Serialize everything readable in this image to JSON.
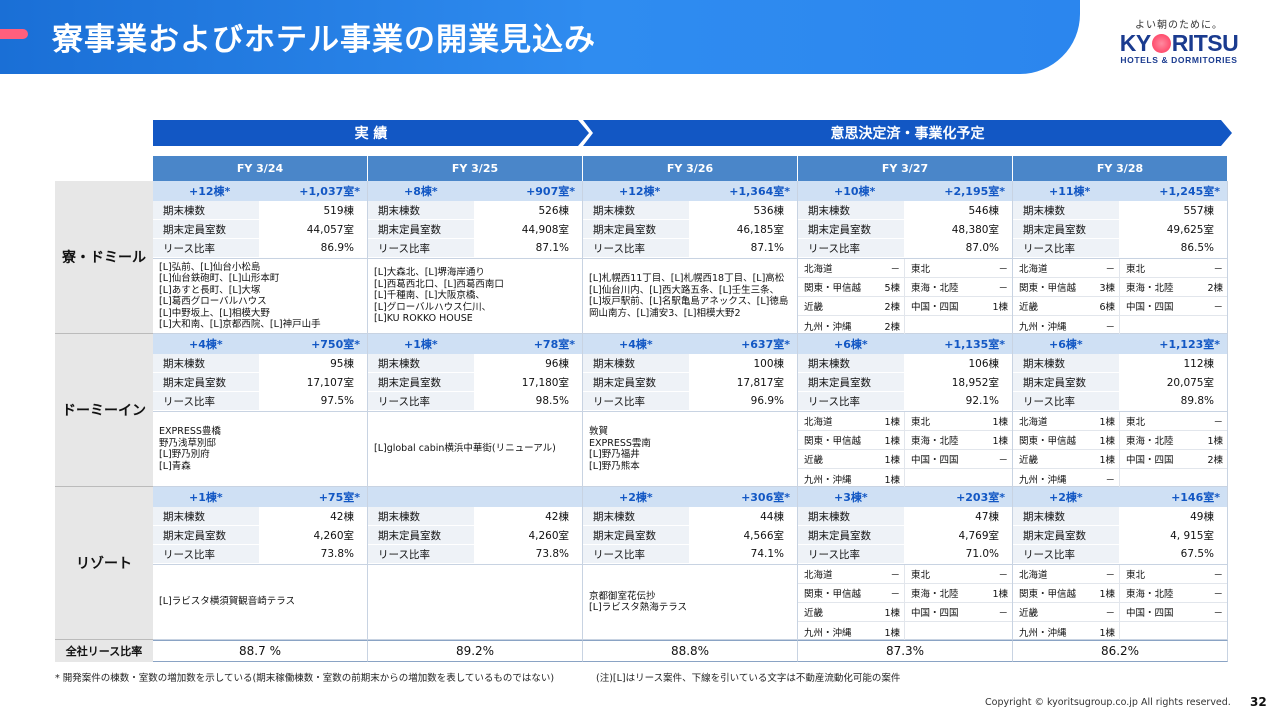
{
  "header": {
    "title": "寮事業およびホテル事業の開業見込み"
  },
  "logo": {
    "tagline": "よい朝のために。",
    "word_left": "KY",
    "word_right": "RITSU",
    "sub": "HOTELS & DORMITORIES"
  },
  "bands": {
    "actual": "実 績",
    "planned": "意思決定済・事業化予定"
  },
  "years": [
    "FY 3/24",
    "FY 3/25",
    "FY 3/26",
    "FY 3/27",
    "FY 3/28"
  ],
  "labels": {
    "buildings": "期末棟数",
    "rooms": "期末定員室数",
    "lease": "リース比率",
    "total": "全社リース比率"
  },
  "sections": {
    "dorm": {
      "name": "寮・ドミール",
      "cols": [
        {
          "inc_b": "+12棟*",
          "inc_r": "+1,037室*",
          "b": "519棟",
          "r": "44,057室",
          "l": "86.9%",
          "props": [
            "[L]弘前、[L]仙台小松島",
            "[L]仙台鉄砲町、[L]山形本町",
            "[L]あすと長町、[L]大塚",
            "[L]葛西グローバルハウス",
            "[L]中野坂上、[L]相模大野",
            "[L]大和南、[L]京都西院、[L]神戸山手"
          ]
        },
        {
          "inc_b": "+8棟*",
          "inc_r": "+907室*",
          "b": "526棟",
          "r": "44,908室",
          "l": "87.1%",
          "props": [
            "[L]大森北、[L]堺海岸通り",
            "[L]西葛西北口、[L]西葛西南口",
            "[L]千種南、[L]大阪京橋、",
            "[L]グローバルハウス仁川、",
            "[L]KU ROKKO HOUSE"
          ]
        },
        {
          "inc_b": "+12棟*",
          "inc_r": "+1,364室*",
          "b": "536棟",
          "r": "46,185室",
          "l": "87.1%",
          "props": [
            "[L]札幌西11丁目、[L]札幌西18丁目、[L]高松",
            "[L]仙台川内、[L]西大路五条、[L]壬生三条、",
            "[L]坂戸駅前、[L]名駅亀島アネックス、[L]徳島",
            "岡山南方、[L]浦安3、[L]相模大野2"
          ]
        },
        {
          "inc_b": "+10棟*",
          "inc_r": "+2,195室*",
          "b": "546棟",
          "r": "48,380室",
          "l": "87.0%",
          "regions": [
            [
              "北海道",
              "－",
              "東北",
              "－"
            ],
            [
              "関東・甲信越",
              "5棟",
              "東海・北陸",
              "－"
            ],
            [
              "近畿",
              "2棟",
              "中国・四国",
              "1棟"
            ],
            [
              "九州・沖縄",
              "2棟",
              "",
              ""
            ]
          ]
        },
        {
          "inc_b": "+11棟*",
          "inc_r": "+1,245室*",
          "b": "557棟",
          "r": "49,625室",
          "l": "86.5%",
          "regions": [
            [
              "北海道",
              "－",
              "東北",
              "－"
            ],
            [
              "関東・甲信越",
              "3棟",
              "東海・北陸",
              "2棟"
            ],
            [
              "近畿",
              "6棟",
              "中国・四国",
              "－"
            ],
            [
              "九州・沖縄",
              "－",
              "",
              ""
            ]
          ]
        }
      ]
    },
    "dormy": {
      "name": "ドーミーイン",
      "cols": [
        {
          "inc_b": "+4棟*",
          "inc_r": "+750室*",
          "b": "95棟",
          "r": "17,107室",
          "l": "97.5%",
          "props": [
            "EXPRESS豊橋",
            "野乃浅草別邸",
            "[L]野乃別府",
            "[L]青森"
          ]
        },
        {
          "inc_b": "+1棟*",
          "inc_r": "+78室*",
          "b": "96棟",
          "r": "17,180室",
          "l": "98.5%",
          "props": [
            "[L]global cabin横浜中華街(リニューアル)"
          ]
        },
        {
          "inc_b": "+4棟*",
          "inc_r": "+637室*",
          "b": "100棟",
          "r": "17,817室",
          "l": "96.9%",
          "props": [
            "敦賀",
            "EXPRESS雲南",
            "[L]野乃福井",
            "[L]野乃熊本"
          ]
        },
        {
          "inc_b": "+6棟*",
          "inc_r": "+1,135室*",
          "b": "106棟",
          "r": "18,952室",
          "l": "92.1%",
          "regions": [
            [
              "北海道",
              "1棟",
              "東北",
              "1棟"
            ],
            [
              "関東・甲信越",
              "1棟",
              "東海・北陸",
              "1棟"
            ],
            [
              "近畿",
              "1棟",
              "中国・四国",
              "－"
            ],
            [
              "九州・沖縄",
              "1棟",
              "",
              ""
            ]
          ]
        },
        {
          "inc_b": "+6棟*",
          "inc_r": "+1,123室*",
          "b": "112棟",
          "r": "20,075室",
          "l": "89.8%",
          "regions": [
            [
              "北海道",
              "1棟",
              "東北",
              "－"
            ],
            [
              "関東・甲信越",
              "1棟",
              "東海・北陸",
              "1棟"
            ],
            [
              "近畿",
              "1棟",
              "中国・四国",
              "2棟"
            ],
            [
              "九州・沖縄",
              "－",
              "",
              ""
            ]
          ]
        }
      ]
    },
    "resort": {
      "name": "リゾート",
      "cols": [
        {
          "inc_b": "+1棟*",
          "inc_r": "+75室*",
          "b": "42棟",
          "r": "4,260室",
          "l": "73.8%",
          "props": [
            "[L]ラビスタ横須賀観音崎テラス"
          ]
        },
        {
          "inc_b": "",
          "inc_r": "",
          "b": "42棟",
          "r": "4,260室",
          "l": "73.8%",
          "props": []
        },
        {
          "inc_b": "+2棟*",
          "inc_r": "+306室*",
          "b": "44棟",
          "r": "4,566室",
          "l": "74.1%",
          "props": [
            "京都御室花伝抄",
            "[L]ラビスタ熱海テラス"
          ]
        },
        {
          "inc_b": "+3棟*",
          "inc_r": "+203室*",
          "b": "47棟",
          "r": "4,769室",
          "l": "71.0%",
          "regions": [
            [
              "北海道",
              "－",
              "東北",
              "－"
            ],
            [
              "関東・甲信越",
              "－",
              "東海・北陸",
              "1棟"
            ],
            [
              "近畿",
              "1棟",
              "中国・四国",
              "－"
            ],
            [
              "九州・沖縄",
              "1棟",
              "",
              ""
            ]
          ]
        },
        {
          "inc_b": "+2棟*",
          "inc_r": "+146室*",
          "b": "49棟",
          "r": "4, 915室",
          "l": "67.5%",
          "regions": [
            [
              "北海道",
              "－",
              "東北",
              "－"
            ],
            [
              "関東・甲信越",
              "1棟",
              "東海・北陸",
              "－"
            ],
            [
              "近畿",
              "－",
              "中国・四国",
              "－"
            ],
            [
              "九州・沖縄",
              "1棟",
              "",
              ""
            ]
          ]
        }
      ]
    }
  },
  "totals": [
    "88.7 %",
    "89.2%",
    "88.8%",
    "87.3%",
    "86.2%"
  ],
  "footnotes": {
    "left": "* 開発案件の棟数・室数の増加数を示している(期末稼働棟数・室数の前期末からの増加数を表しているものではない)",
    "right": "(注)[L]はリース案件、下線を引いている文字は不動産流動化可能の案件"
  },
  "copyright": "Copyright © kyoritsugroup.co.jp All rights reserved.",
  "page_number": "32"
}
